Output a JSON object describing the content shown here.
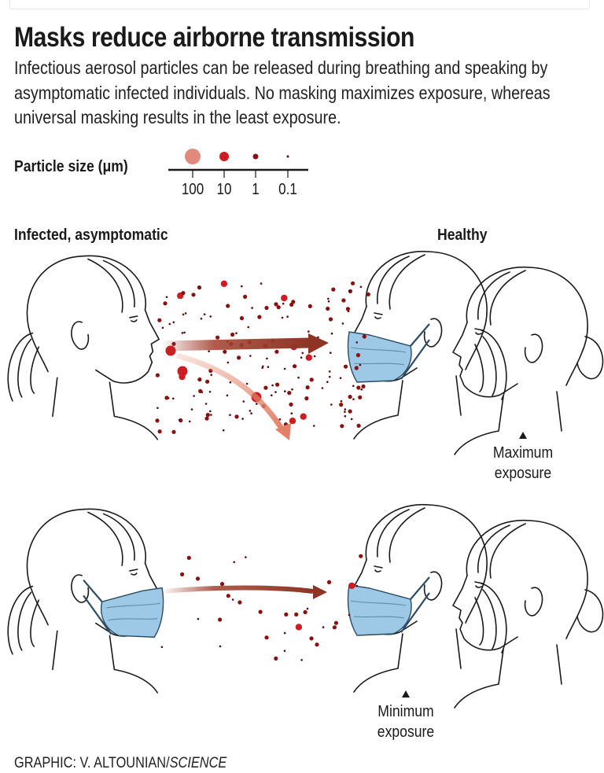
{
  "header": {
    "title": "Masks reduce airborne transmission",
    "subtitle": "Infectious aerosol particles can be released during breathing and speaking by asymptomatic infected individuals. No masking maximizes exposure, whereas universal masking results in the least exposure."
  },
  "legend": {
    "label": "Particle size (μm)",
    "sizes": [
      {
        "label": "100",
        "color": "#e08a7c"
      },
      {
        "label": "10",
        "color": "#cc1d22"
      },
      {
        "label": "1",
        "color": "#8a0f0f"
      },
      {
        "label": "0.1",
        "color": "#5a0b0b"
      }
    ]
  },
  "labels": {
    "infected": "Infected, asymptomatic",
    "healthy": "Healthy",
    "maximum": "Maximum exposure",
    "minimum": "Minimum exposure"
  },
  "credit": {
    "prefix": "GRAPHIC: V. ALTOUNIAN/",
    "source": "SCIENCE"
  },
  "colors": {
    "mask": "#9dc9e6",
    "arrow_straight": "#a1402e",
    "arrow_curved": "#e38066",
    "line": "#1a1a1a"
  },
  "scenes": [
    {
      "name": "no masking",
      "infected_masked": false,
      "healthy_front_masked": true
    },
    {
      "name": "universal masking",
      "infected_masked": true,
      "healthy_front_masked": true
    }
  ]
}
